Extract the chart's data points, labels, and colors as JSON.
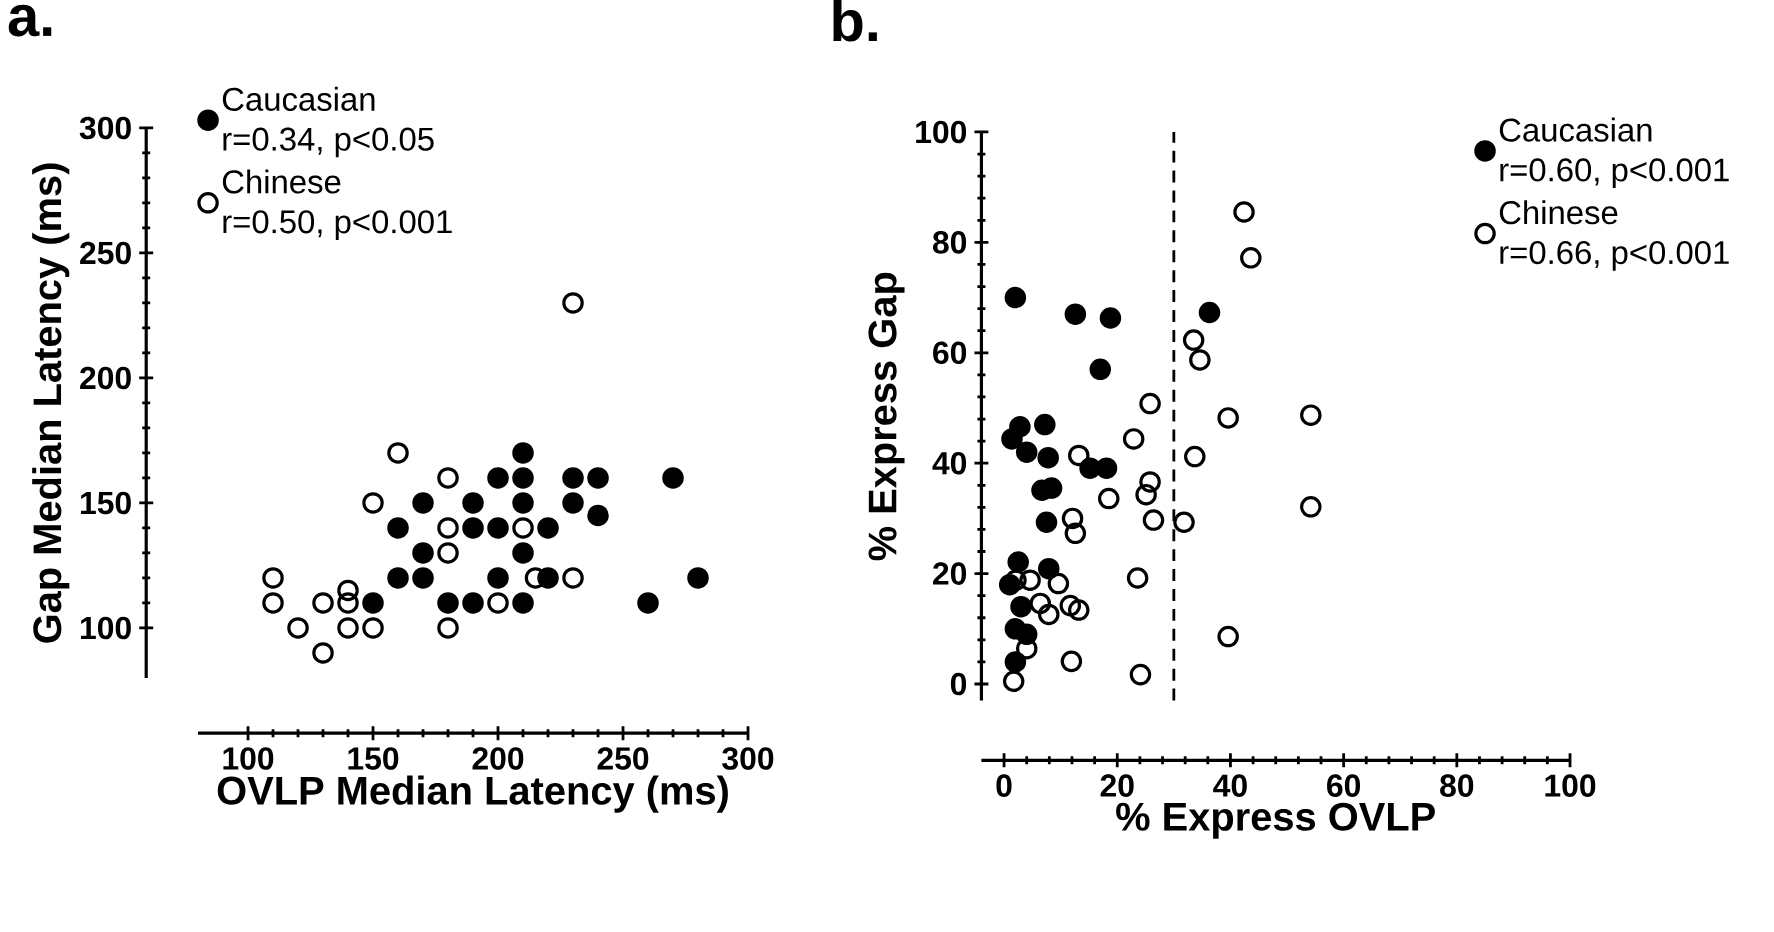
{
  "chart_data": [
    {
      "type": "scatter",
      "title": "a.",
      "xlabel": "OVLP Median Latency (ms)",
      "ylabel": "Gap Median Latency (ms)",
      "xlim": [
        80,
        300
      ],
      "xticks": [
        100,
        150,
        200,
        250,
        300
      ],
      "ylim": [
        80,
        300
      ],
      "yticks": [
        100,
        150,
        200,
        250,
        300
      ],
      "legend": "top left",
      "annotations": [
        "r=0.34, p<0.05",
        "r=0.50, p<0.001"
      ],
      "series": [
        {
          "name": "Caucasian",
          "color": "#000000",
          "marker": "circle",
          "x": [
            150,
            160,
            160,
            170,
            170,
            170,
            180,
            190,
            190,
            190,
            200,
            200,
            200,
            210,
            210,
            210,
            210,
            210,
            220,
            220,
            230,
            230,
            240,
            240,
            260,
            270,
            280
          ],
          "values": [
            110,
            140,
            120,
            120,
            130,
            150,
            110,
            110,
            150,
            140,
            140,
            160,
            120,
            170,
            160,
            150,
            130,
            110,
            140,
            120,
            160,
            150,
            160,
            145,
            110,
            160,
            120
          ]
        },
        {
          "name": "Chinese",
          "color": "#000000",
          "marker": "circle-open",
          "x": [
            110,
            110,
            120,
            130,
            130,
            140,
            140,
            140,
            150,
            150,
            160,
            180,
            180,
            180,
            180,
            200,
            210,
            215,
            230,
            230
          ],
          "values": [
            120,
            110,
            100,
            110,
            90,
            115,
            110,
            100,
            100,
            150,
            170,
            160,
            140,
            130,
            100,
            110,
            140,
            120,
            120,
            230
          ]
        }
      ]
    },
    {
      "type": "scatter",
      "title": "b.",
      "xlabel": "% Express OVLP",
      "ylabel": "% Express Gap",
      "xlim": [
        -4,
        100
      ],
      "xticks": [
        0,
        20,
        40,
        60,
        80,
        100
      ],
      "ylim": [
        -3,
        100
      ],
      "yticks": [
        0,
        20,
        40,
        60,
        80,
        100
      ],
      "legend": "top right",
      "annotations": [
        "r=0.60, p<0.001",
        "r=0.66, p<0.001"
      ],
      "ref_lines": [
        {
          "axis": "x",
          "value": 30,
          "line_style": "dashed"
        }
      ],
      "series": [
        {
          "name": "Caucasian",
          "color": "#000000",
          "marker": "circle",
          "x": [
            2.0,
            12.6,
            18.8,
            36.3,
            17,
            2.8,
            1.4,
            7.2,
            4,
            7.8,
            15.2,
            18.1,
            6.7,
            8.4,
            7.5,
            2.5,
            7.9,
            1,
            2,
            2,
            3,
            4
          ],
          "values": [
            70,
            67,
            66.3,
            67.3,
            57,
            46.6,
            44.4,
            47,
            42,
            41,
            39.1,
            39.1,
            35.1,
            35.5,
            29.3,
            22.1,
            20.9,
            18,
            10,
            4,
            14,
            9
          ]
        },
        {
          "name": "Chinese",
          "color": "#000000",
          "marker": "circle-open",
          "x": [
            42.4,
            43.6,
            33.5,
            34.6,
            25.8,
            39.6,
            54.2,
            22.9,
            13.2,
            33.7,
            25.8,
            25.1,
            18.5,
            12.1,
            12.6,
            26.4,
            31.8,
            54.2,
            23.6,
            4.6,
            9.6,
            11.7,
            13.2,
            7.9,
            6.4,
            39.6,
            4,
            11.9,
            24.1,
            1.7,
            2.1
          ],
          "values": [
            85.5,
            77.2,
            62.3,
            58.7,
            50.8,
            48.2,
            48.7,
            44.4,
            41.4,
            41.2,
            36.6,
            34.3,
            33.6,
            30,
            27.3,
            29.7,
            29.3,
            32.1,
            19.2,
            18.8,
            18.2,
            14.2,
            13.4,
            12.6,
            14.6,
            8.6,
            6.4,
            4.1,
            1.7,
            0.5,
            18.8
          ]
        }
      ]
    }
  ]
}
